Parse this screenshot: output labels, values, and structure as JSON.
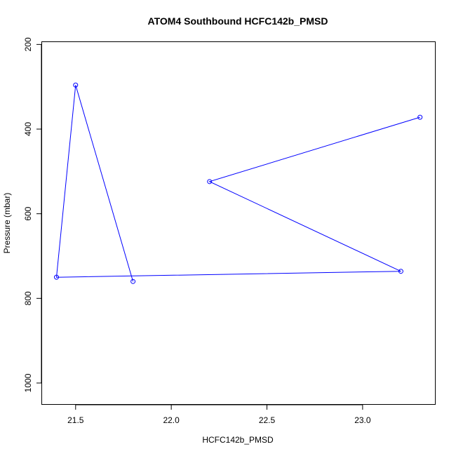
{
  "chart_data": {
    "type": "line",
    "title": "ATOM4 Southbound HCFC142b_PMSD",
    "xlabel": "HCFC142b_PMSD",
    "ylabel": "Pressure (mbar)",
    "xlim": [
      21.4,
      23.3
    ],
    "ylim": [
      1040,
      180
    ],
    "y_reversed": true,
    "xticks": [
      21.5,
      22.0,
      22.5,
      23.0
    ],
    "xtick_labels": [
      "21.5",
      "22.0",
      "22.5",
      "23.0"
    ],
    "yticks": [
      200,
      400,
      600,
      800,
      1000
    ],
    "ytick_labels": [
      "200",
      "400",
      "600",
      "800",
      "1000"
    ],
    "grid": false,
    "legend": "none",
    "series": [
      {
        "color": "#0000ff",
        "marker": "open-circle",
        "points": [
          {
            "x": 23.3,
            "y": 372
          },
          {
            "x": 22.2,
            "y": 524
          },
          {
            "x": 23.2,
            "y": 736
          },
          {
            "x": 21.4,
            "y": 750
          },
          {
            "x": 21.5,
            "y": 296
          },
          {
            "x": 21.8,
            "y": 760
          }
        ]
      }
    ]
  }
}
